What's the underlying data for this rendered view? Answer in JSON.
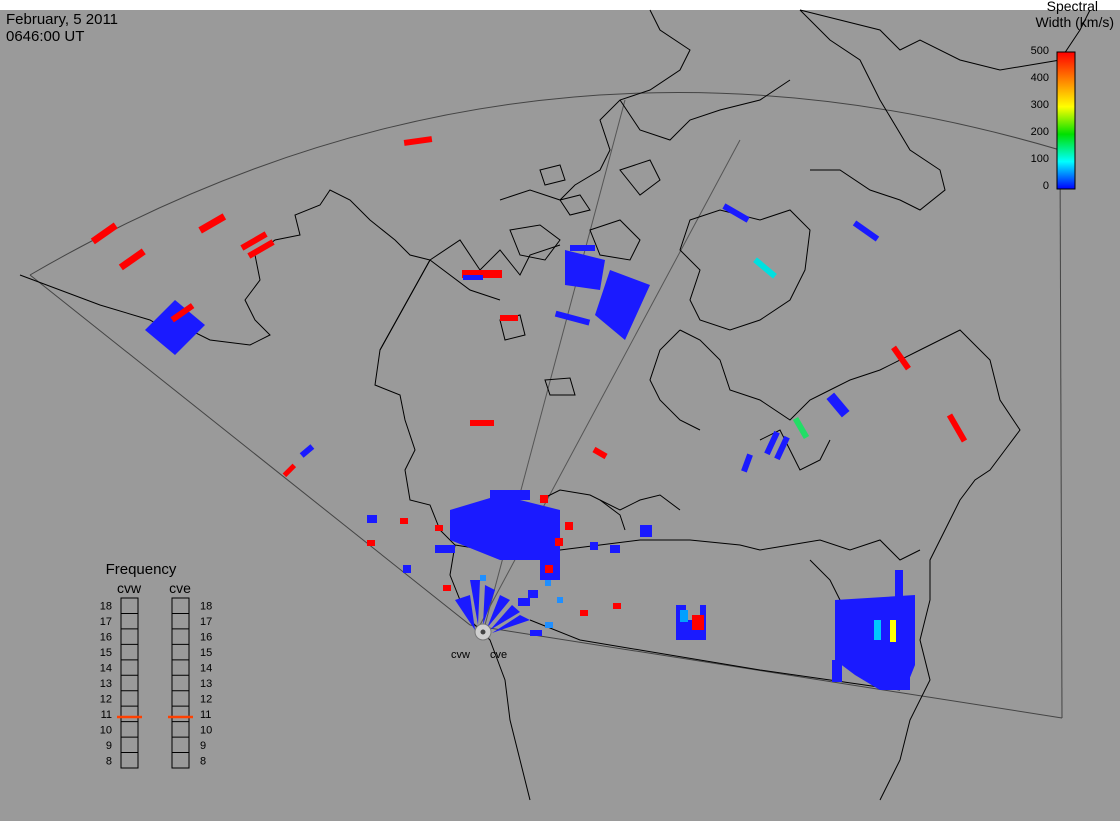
{
  "header": {
    "date": "February, 5 2011",
    "time": "0646:00 UT"
  },
  "legend": {
    "title_line1": "Spectral",
    "title_line2": "Width (km/s)",
    "ticks": [
      "500",
      "400",
      "300",
      "200",
      "100",
      "0"
    ],
    "range": [
      0,
      500
    ],
    "colors": [
      "#ff0000",
      "#ff8c00",
      "#ffff00",
      "#00e000",
      "#00ffff",
      "#0000ff"
    ]
  },
  "frequency": {
    "title": "Frequency",
    "radars": [
      {
        "name": "cvw",
        "mhz": 10.8
      },
      {
        "name": "cve",
        "mhz": 10.8
      }
    ],
    "scale": [
      "18",
      "17",
      "16",
      "15",
      "14",
      "13",
      "12",
      "11",
      "10",
      "9",
      "8"
    ],
    "indicator_color": "#ff4000"
  },
  "map": {
    "background": "#9a9a9a",
    "radar_labels": [
      "cvw",
      "cve"
    ]
  }
}
